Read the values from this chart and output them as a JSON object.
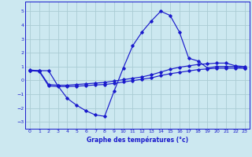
{
  "xlabel": "Graphe des températures (°c)",
  "xlim": [
    -0.5,
    23.5
  ],
  "ylim": [
    -3.5,
    5.7
  ],
  "yticks": [
    -3,
    -2,
    -1,
    0,
    1,
    2,
    3,
    4,
    5
  ],
  "xticks": [
    0,
    1,
    2,
    3,
    4,
    5,
    6,
    7,
    8,
    9,
    10,
    11,
    12,
    13,
    14,
    15,
    16,
    17,
    18,
    19,
    20,
    21,
    22,
    23
  ],
  "background_color": "#cce8f0",
  "line_color": "#1a1acc",
  "grid_color": "#aaccd4",
  "curve1_x": [
    0,
    1,
    2,
    3,
    4,
    5,
    6,
    7,
    8,
    9,
    10,
    11,
    12,
    13,
    14,
    15,
    16,
    17,
    18,
    19,
    20,
    21,
    22,
    23
  ],
  "curve1_y": [
    0.7,
    0.7,
    0.7,
    -0.4,
    -1.3,
    -1.8,
    -2.2,
    -2.5,
    -2.6,
    -0.8,
    0.9,
    2.5,
    3.5,
    4.3,
    5.0,
    4.7,
    3.5,
    1.6,
    1.4,
    0.9,
    1.0,
    1.0,
    1.0,
    0.9
  ],
  "curve2_x": [
    0,
    1,
    2,
    3,
    4,
    5,
    6,
    7,
    8,
    9,
    10,
    11,
    12,
    13,
    14,
    15,
    16,
    17,
    18,
    19,
    20,
    21,
    22,
    23
  ],
  "curve2_y": [
    0.75,
    0.7,
    -0.3,
    -0.35,
    -0.35,
    -0.3,
    -0.25,
    -0.2,
    -0.15,
    -0.05,
    0.05,
    0.15,
    0.25,
    0.4,
    0.6,
    0.8,
    0.95,
    1.05,
    1.15,
    1.2,
    1.25,
    1.25,
    1.05,
    1.0
  ],
  "curve3_x": [
    0,
    1,
    2,
    3,
    4,
    5,
    6,
    7,
    8,
    9,
    10,
    11,
    12,
    13,
    14,
    15,
    16,
    17,
    18,
    19,
    20,
    21,
    22,
    23
  ],
  "curve3_y": [
    0.7,
    0.65,
    -0.4,
    -0.45,
    -0.45,
    -0.42,
    -0.38,
    -0.33,
    -0.3,
    -0.22,
    -0.12,
    -0.02,
    0.08,
    0.18,
    0.35,
    0.48,
    0.58,
    0.68,
    0.78,
    0.83,
    0.88,
    0.88,
    0.88,
    0.88
  ]
}
